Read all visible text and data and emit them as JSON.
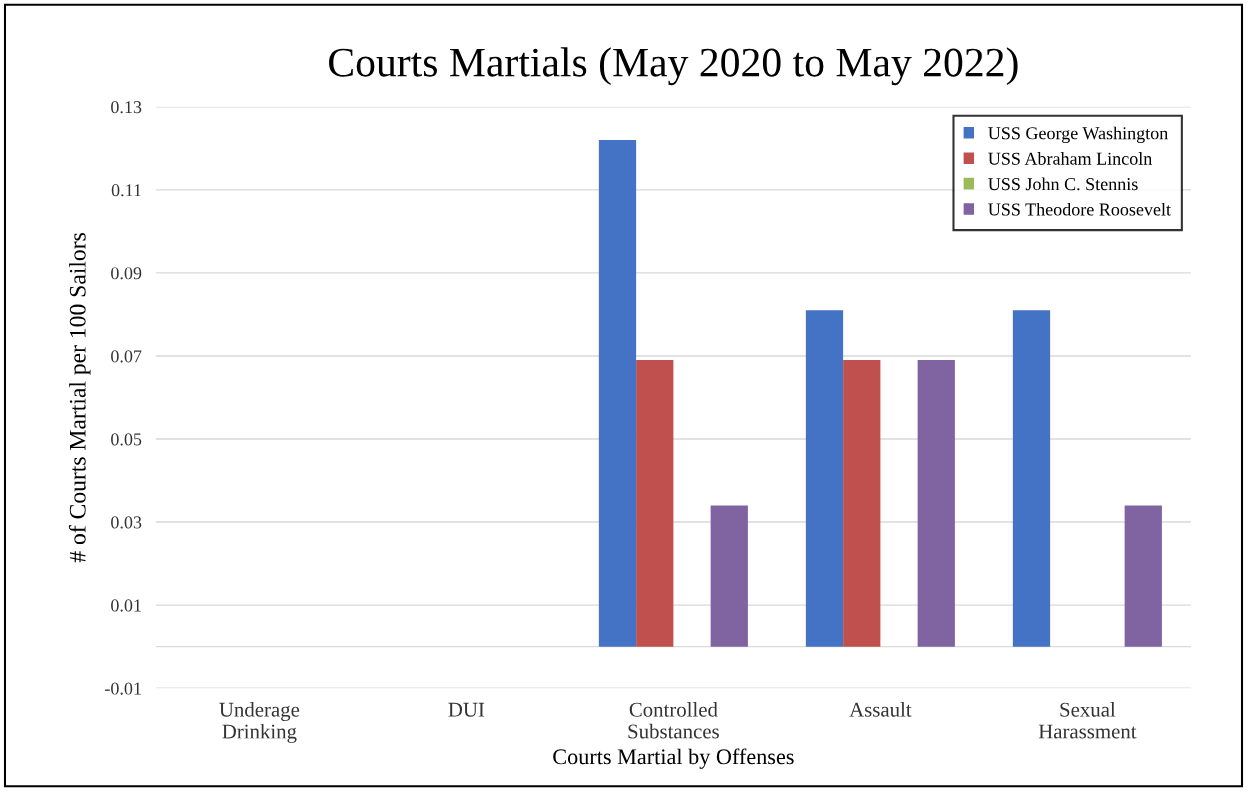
{
  "chart_data": {
    "type": "bar",
    "title": "Courts Martials (May 2020 to May 2022)",
    "xlabel": "Courts Martial by Offenses",
    "ylabel": "# of Courts Martial per 100 Sailors",
    "categories": [
      "Underage\nDrinking",
      "DUI",
      "Controlled\nSubstances",
      "Assault",
      "Sexual\nHarassment"
    ],
    "series": [
      {
        "name": "USS George Washington",
        "color": "#4472c4",
        "values": [
          0,
          0,
          0.122,
          0.081,
          0.081
        ]
      },
      {
        "name": "USS Abraham Lincoln",
        "color": "#c0504d",
        "values": [
          0,
          0,
          0.069,
          0.069,
          0
        ]
      },
      {
        "name": "USS John C. Stennis",
        "color": "#9bbb59",
        "values": [
          0,
          0,
          0,
          0,
          0
        ]
      },
      {
        "name": "USS Theodore Roosevelt",
        "color": "#8064a2",
        "values": [
          0,
          0,
          0.034,
          0.069,
          0.034
        ]
      }
    ],
    "ylim": [
      -0.01,
      0.13
    ],
    "yticks": [
      {
        "value": -0.01,
        "label": "-0.01"
      },
      0.01,
      0.03,
      0.05,
      0.07,
      0.09,
      0.11,
      0.13
    ],
    "grid": "y",
    "legend": "top right"
  }
}
